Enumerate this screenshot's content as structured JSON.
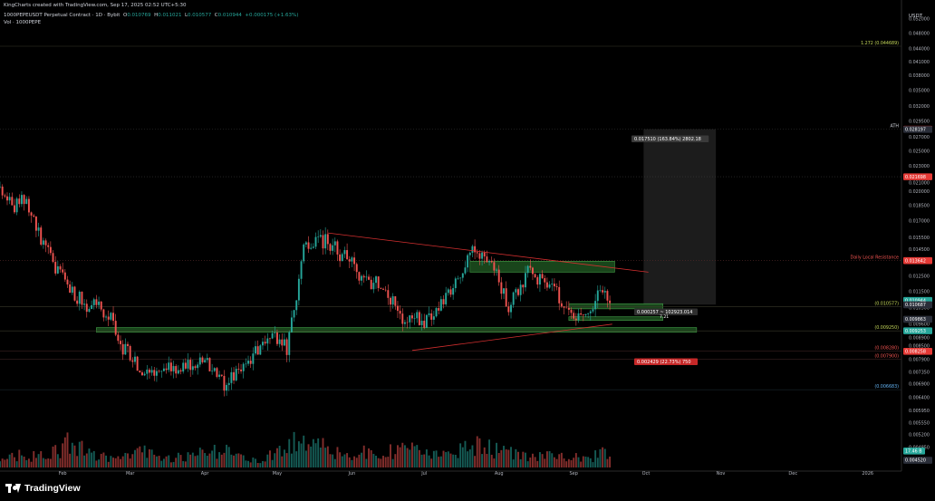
{
  "window": {
    "credit": "KingCharts created with TradingView.com, Sep 17, 2025 02:52 UTC+5:30"
  },
  "legend": {
    "symbol_line": "1000PEPEUSDT Perpetual Contract · 1D · Bybit",
    "open_label": "O",
    "open": "0.010769",
    "high_label": "H",
    "high": "0.011021",
    "low_label": "L",
    "low": "0.010577",
    "close_label": "C",
    "close": "0.010944",
    "change": "+0.000175 (+1.63%)",
    "volume_line": "Vol · 1000PEPE"
  },
  "colors": {
    "background": "#000000",
    "up": "#26a69a",
    "down": "#ef5350",
    "grid_line": "#2a2a2a",
    "zone_green": "#2e7d32",
    "trendline": "#d32f2f",
    "fib_text": "#c6d95a",
    "measure_box": "#1c1c1c"
  },
  "branding": {
    "logo_text": "TradingView"
  },
  "chart_data": {
    "type": "candlestick",
    "currency": "USDT",
    "y_scale": "log",
    "ylim": [
      0.0043,
      0.056
    ],
    "x_range": [
      "2025-01-06",
      "2026-01-15"
    ],
    "x_ticks": [
      {
        "date": "2025-02-01",
        "label": "Feb"
      },
      {
        "date": "2025-03-01",
        "label": "Mar"
      },
      {
        "date": "2025-04-01",
        "label": "Apr"
      },
      {
        "date": "2025-05-01",
        "label": "May"
      },
      {
        "date": "2025-06-01",
        "label": "Jun"
      },
      {
        "date": "2025-07-01",
        "label": "Jul"
      },
      {
        "date": "2025-08-01",
        "label": "Aug"
      },
      {
        "date": "2025-09-01",
        "label": "Sep"
      },
      {
        "date": "2025-10-01",
        "label": "Oct"
      },
      {
        "date": "2025-11-01",
        "label": "Nov"
      },
      {
        "date": "2025-12-01",
        "label": "Dec"
      },
      {
        "date": "2026-01-01",
        "label": "2026"
      }
    ],
    "y_ticks": [
      "0.056000",
      "0.052000",
      "0.048000",
      "0.044000",
      "0.041000",
      "0.038000",
      "0.035000",
      "0.032000",
      "0.029500",
      "0.027000",
      "0.025000",
      "0.023000",
      "0.021000",
      "0.020000",
      "0.018500",
      "0.017000",
      "0.015500",
      "0.014500",
      "0.013500",
      "0.012500",
      "0.011500",
      "0.010500",
      "0.009600",
      "0.008900",
      "0.008500",
      "0.007900",
      "0.007350",
      "0.006900",
      "0.006400",
      "0.005950",
      "0.005550",
      "0.005200",
      "0.004850",
      "0.004500"
    ],
    "price_badges": [
      {
        "value": "0.028229",
        "kind": "red"
      },
      {
        "value": "0.028197",
        "kind": "dark"
      },
      {
        "value": "0.021698",
        "kind": "red"
      },
      {
        "value": "0.013642",
        "kind": "red"
      },
      {
        "value": "0.010944",
        "kind": "green"
      },
      {
        "value": "0.010687",
        "kind": "dark"
      },
      {
        "value": "0.009863",
        "kind": "dark"
      },
      {
        "value": "0.009253",
        "kind": "green"
      },
      {
        "value": "0.008258",
        "kind": "red"
      },
      {
        "value": "0.004520",
        "kind": "dark"
      }
    ],
    "volume_badge": "17.46 B",
    "horizontal_levels": [
      {
        "price": 0.04469,
        "label": "1.272 (0.044689)",
        "style": "fib"
      },
      {
        "price": 0.02823,
        "label": "ATH",
        "style": "dotted"
      },
      {
        "price": 0.0217,
        "label": "",
        "style": "dotted"
      },
      {
        "price": 0.013642,
        "label": "Daily Local Resistance",
        "style": "dotted_red"
      },
      {
        "price": 0.010577,
        "label": "(0.010577)",
        "style": "fib"
      },
      {
        "price": 0.00925,
        "label": "(0.009250)",
        "style": "fib"
      },
      {
        "price": 0.00828,
        "label": "(0.008280)",
        "style": "fib_red"
      },
      {
        "price": 0.0079,
        "label": "(0.007900)",
        "style": "fib_red"
      },
      {
        "price": 0.00668,
        "label": "(0.006683)",
        "style": "fib_blue"
      }
    ],
    "measure_labels": {
      "up": "0.017510 (163.84%) 2802.18",
      "mid": "0.000257 ~ 102923.014",
      "mid2": "7.21",
      "down": "0.002429 (22.73%) 750"
    },
    "zones": [
      {
        "from": "2025-07-20",
        "to": "2025-09-18",
        "low": 0.0128,
        "high": 0.0136
      },
      {
        "from": "2025-08-30",
        "to": "2025-10-08",
        "low": 0.01045,
        "high": 0.01075
      },
      {
        "from": "2025-08-30",
        "to": "2025-10-08",
        "low": 0.0098,
        "high": 0.01
      },
      {
        "from": "2025-02-15",
        "to": "2025-10-22",
        "low": 0.00918,
        "high": 0.00942
      }
    ],
    "trendlines": [
      {
        "from": [
          "2025-05-22",
          0.0159
        ],
        "to": [
          "2025-10-02",
          0.0128
        ]
      },
      {
        "from": [
          "2025-06-26",
          0.0083
        ],
        "to": [
          "2025-09-17",
          0.0096
        ]
      }
    ],
    "measure_box": {
      "from": "2025-09-30",
      "to": "2025-10-30",
      "low": 0.0107,
      "high": 0.02823
    },
    "anchors": [
      [
        "2025-01-06",
        0.0205
      ],
      [
        "2025-01-12",
        0.0178
      ],
      [
        "2025-01-15",
        0.0198
      ],
      [
        "2025-01-19",
        0.0172
      ],
      [
        "2025-01-27",
        0.0138
      ],
      [
        "2025-02-03",
        0.0118
      ],
      [
        "2025-02-10",
        0.0108
      ],
      [
        "2025-02-20",
        0.0103
      ],
      [
        "2025-02-25",
        0.0085
      ],
      [
        "2025-03-03",
        0.0078
      ],
      [
        "2025-03-10",
        0.0072
      ],
      [
        "2025-03-20",
        0.0076
      ],
      [
        "2025-04-01",
        0.0079
      ],
      [
        "2025-04-08",
        0.0069
      ],
      [
        "2025-04-15",
        0.0073
      ],
      [
        "2025-04-25",
        0.0087
      ],
      [
        "2025-05-01",
        0.0088
      ],
      [
        "2025-05-05",
        0.0084
      ],
      [
        "2025-05-08",
        0.0105
      ],
      [
        "2025-05-12",
        0.0148
      ],
      [
        "2025-05-22",
        0.0152
      ],
      [
        "2025-06-05",
        0.0126
      ],
      [
        "2025-06-13",
        0.0118
      ],
      [
        "2025-06-22",
        0.01
      ],
      [
        "2025-07-01",
        0.0098
      ],
      [
        "2025-07-10",
        0.0112
      ],
      [
        "2025-07-22",
        0.0145
      ],
      [
        "2025-07-30",
        0.013
      ],
      [
        "2025-08-05",
        0.0106
      ],
      [
        "2025-08-13",
        0.0128
      ],
      [
        "2025-08-24",
        0.0116
      ],
      [
        "2025-09-01",
        0.0099
      ],
      [
        "2025-09-06",
        0.0098
      ],
      [
        "2025-09-12",
        0.0118
      ],
      [
        "2025-09-16",
        0.010944
      ]
    ],
    "volume_max_b": 50,
    "volume_anchors": [
      [
        "2025-01-06",
        14
      ],
      [
        "2025-01-25",
        12
      ],
      [
        "2025-02-03",
        26
      ],
      [
        "2025-02-20",
        11
      ],
      [
        "2025-03-03",
        20
      ],
      [
        "2025-03-15",
        9
      ],
      [
        "2025-04-08",
        18
      ],
      [
        "2025-04-25",
        8
      ],
      [
        "2025-05-10",
        38
      ],
      [
        "2025-05-25",
        16
      ],
      [
        "2025-06-22",
        20
      ],
      [
        "2025-07-10",
        12
      ],
      [
        "2025-07-22",
        24
      ],
      [
        "2025-08-13",
        14
      ],
      [
        "2025-09-06",
        10
      ],
      [
        "2025-09-16",
        17.46
      ]
    ]
  }
}
